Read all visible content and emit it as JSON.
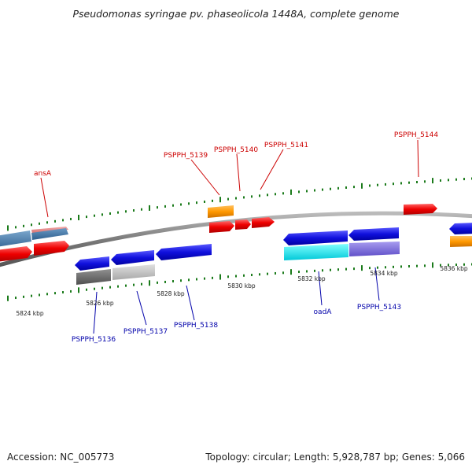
{
  "title": "Pseudomonas syringae pv. phaseolicola 1448A, complete genome",
  "footer": {
    "accession": "Accession: NC_005773",
    "summary": "Topology: circular; Length: 5,928,787 bp; Genes: 5,066"
  },
  "colors": {
    "forward_label": "#cc0000",
    "reverse_label": "#0000aa",
    "tick": "#1a7a1a",
    "backbone": "#8a8a8a"
  },
  "axis_ticks": [
    {
      "label": "5824 kbp",
      "kbp": 5824
    },
    {
      "label": "5826 kbp",
      "kbp": 5826
    },
    {
      "label": "5828 kbp",
      "kbp": 5828
    },
    {
      "label": "5830 kbp",
      "kbp": 5830
    },
    {
      "label": "5832 kbp",
      "kbp": 5832
    },
    {
      "label": "5834 kbp",
      "kbp": 5834
    },
    {
      "label": "5836 kbp",
      "kbp": 5836
    }
  ],
  "forward_labels": [
    "ansA",
    "PSPPH_5139",
    "PSPPH_5140",
    "PSPPH_5141",
    "PSPPH_5144"
  ],
  "reverse_labels": [
    "PSPPH_5136",
    "PSPPH_5137",
    "PSPPH_5138",
    "oadA",
    "PSPPH_5143"
  ]
}
